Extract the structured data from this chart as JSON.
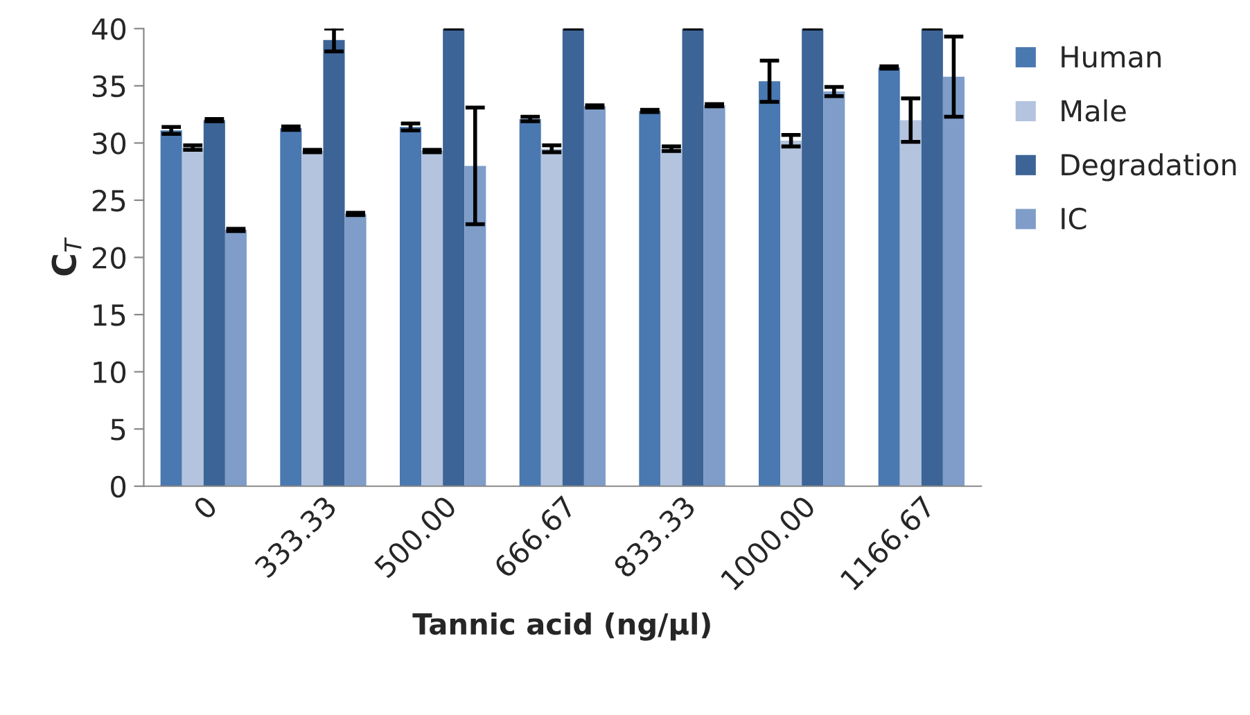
{
  "chart_data": {
    "type": "bar",
    "xlabel": "Tannic acid (ng/µl)",
    "ylabel": "C$_{T}$",
    "categories": [
      "0",
      "333.33",
      "500.00",
      "666.67",
      "833.33",
      "1000.00",
      "1166.67"
    ],
    "series": [
      {
        "name": "Human",
        "color": "#4a78b0",
        "values": [
          31.1,
          31.3,
          31.4,
          32.1,
          32.8,
          35.4,
          36.6
        ],
        "errors": [
          0.3,
          0.15,
          0.3,
          0.2,
          0.1,
          1.8,
          0.1
        ]
      },
      {
        "name": "Male",
        "color": "#b4c4de",
        "values": [
          29.6,
          29.3,
          29.3,
          29.5,
          29.5,
          30.2,
          32.0
        ],
        "errors": [
          0.2,
          0.1,
          0.1,
          0.3,
          0.2,
          0.5,
          1.9
        ]
      },
      {
        "name": "Degradation",
        "color": "#3c6496",
        "values": [
          32.0,
          39.0,
          40,
          40,
          40,
          40,
          40
        ],
        "errors": [
          0.1,
          1.0,
          0,
          0,
          0,
          0,
          0
        ]
      },
      {
        "name": "IC",
        "color": "#7f9dc8",
        "values": [
          22.4,
          23.8,
          28.0,
          33.2,
          33.3,
          34.5,
          35.8
        ],
        "errors": [
          0.1,
          0.1,
          5.1,
          0.1,
          0.1,
          0.4,
          3.5
        ]
      }
    ],
    "ylim": [
      0,
      40
    ],
    "yticks": [
      0,
      5,
      10,
      15,
      20,
      25,
      30,
      35,
      40
    ],
    "grid": false,
    "legend": "top right"
  }
}
